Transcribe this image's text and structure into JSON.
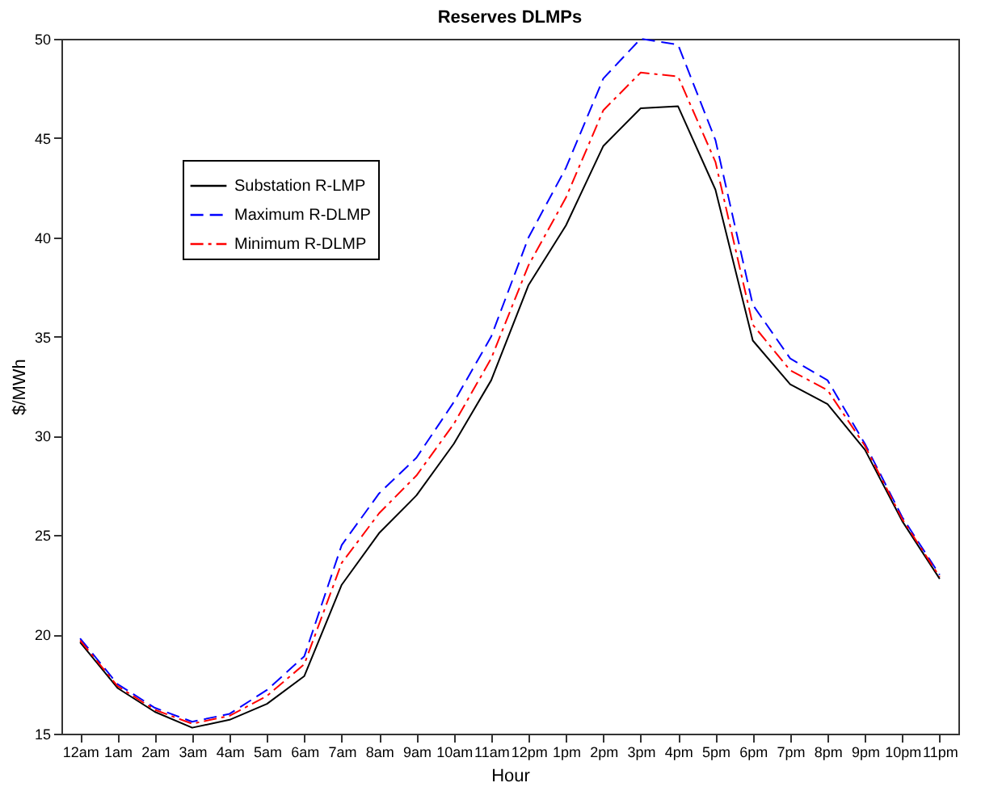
{
  "chart_data": {
    "type": "line",
    "title": "Reserves DLMPs",
    "xlabel": "Hour",
    "ylabel": "$/MWh",
    "categories": [
      "12am",
      "1am",
      "2am",
      "3am",
      "4am",
      "5am",
      "6am",
      "7am",
      "8am",
      "9am",
      "10am",
      "11am",
      "12pm",
      "1pm",
      "2pm",
      "3pm",
      "4pm",
      "5pm",
      "6pm",
      "7pm",
      "8pm",
      "9pm",
      "10pm",
      "11pm"
    ],
    "series": [
      {
        "name": "Substation R-LMP",
        "color": "#000000",
        "line_style": "solid",
        "values": [
          19.6,
          17.3,
          16.1,
          15.3,
          15.7,
          16.5,
          17.9,
          22.5,
          25.1,
          27.0,
          29.6,
          32.8,
          37.6,
          40.6,
          44.6,
          46.5,
          46.6,
          42.4,
          34.8,
          32.6,
          31.6,
          29.3,
          25.7,
          22.8
        ]
      },
      {
        "name": "Maximum R-DLMP",
        "color": "#0000ff",
        "line_style": "dashed",
        "values": [
          19.8,
          17.5,
          16.3,
          15.6,
          16.0,
          17.2,
          18.9,
          24.5,
          27.1,
          28.9,
          31.7,
          35.0,
          40.0,
          43.5,
          48.0,
          50.0,
          49.7,
          44.9,
          36.6,
          33.9,
          32.8,
          29.6,
          25.9,
          23.0
        ]
      },
      {
        "name": "Minimum R-DLMP",
        "color": "#ff0000",
        "line_style": "dashdot",
        "values": [
          19.7,
          17.4,
          16.2,
          15.5,
          15.9,
          16.9,
          18.5,
          23.6,
          26.1,
          28.0,
          30.6,
          33.9,
          38.6,
          42.0,
          46.4,
          48.3,
          48.1,
          43.8,
          35.6,
          33.3,
          32.3,
          29.5,
          25.8,
          22.9
        ]
      }
    ],
    "ylim": [
      15,
      50
    ],
    "yticks": [
      15,
      20,
      25,
      30,
      35,
      40,
      45,
      50
    ],
    "grid": false,
    "legend": "top left",
    "marker": "none"
  }
}
